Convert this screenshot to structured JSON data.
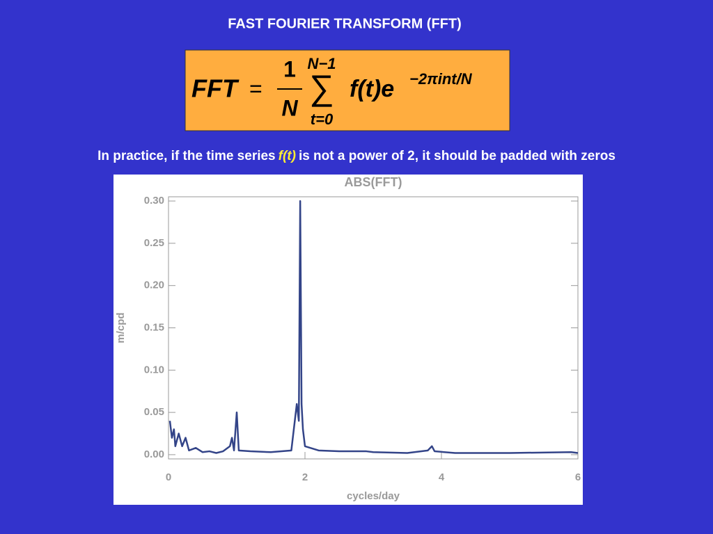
{
  "slide": {
    "title": "FAST FOURIER TRANSFORM (FFT)",
    "formula": {
      "lhs": "FFT",
      "equals": "=",
      "numerator": "1",
      "denominator": "N",
      "sum": "∑",
      "upper": "N−1",
      "lower": "t=0",
      "body": "f(t)e",
      "exponent": "−2πint/N"
    },
    "note": {
      "before": "In practice, if the time series",
      "emphasis": "f(t)",
      "after": "is not a power of 2, it should be padded with zeros"
    }
  },
  "chart_data": {
    "type": "line",
    "title": "ABS(FFT)",
    "x_label": "cycles/day",
    "y_label": "m/cpd",
    "color": "#334488",
    "x": [
      0.02,
      0.05,
      0.08,
      0.1,
      0.15,
      0.2,
      0.25,
      0.3,
      0.4,
      0.5,
      0.6,
      0.7,
      0.8,
      0.9,
      0.93,
      0.96,
      1.0,
      1.03,
      1.2,
      1.5,
      1.8,
      1.88,
      1.91,
      1.93,
      1.95,
      1.97,
      2.0,
      2.2,
      2.5,
      2.9,
      3.0,
      3.5,
      3.8,
      3.86,
      3.9,
      4.2,
      5.0,
      5.9,
      6.0
    ],
    "values": [
      0.04,
      0.02,
      0.03,
      0.01,
      0.025,
      0.01,
      0.02,
      0.005,
      0.008,
      0.003,
      0.004,
      0.002,
      0.004,
      0.01,
      0.02,
      0.005,
      0.05,
      0.005,
      0.004,
      0.003,
      0.005,
      0.06,
      0.04,
      0.3,
      0.06,
      0.03,
      0.01,
      0.005,
      0.004,
      0.004,
      0.003,
      0.002,
      0.005,
      0.01,
      0.004,
      0.002,
      0.002,
      0.003,
      0.002
    ],
    "xlim": [
      0,
      6
    ],
    "xticks": [
      0,
      2,
      4,
      6
    ],
    "ylim": [
      -0.005,
      0.305
    ],
    "yticks": [
      {
        "value": 0,
        "label": "0.00"
      },
      {
        "value": 0.05,
        "label": "0.05"
      },
      {
        "value": 0.1,
        "label": "0.10"
      },
      {
        "value": 0.15,
        "label": "0.15"
      },
      {
        "value": 0.2,
        "label": "0.20"
      },
      {
        "value": 0.25,
        "label": "0.25"
      },
      {
        "value": 0.3,
        "label": "0.30"
      }
    ]
  }
}
